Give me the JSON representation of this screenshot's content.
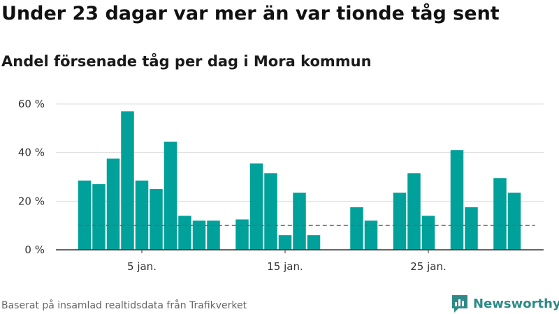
{
  "title": "Under 23 dagar var mer än var tionde tåg sent",
  "subtitle": "Andel försenade tåg per dag i Mora kommun",
  "source": "Baserat på insamlad realtidsdata från Trafikverket",
  "brand": {
    "name": "Newsworthy",
    "icon": "newsworthy-logo-icon"
  },
  "colors": {
    "bar": "#00A19A",
    "reference_line": "#666666",
    "grid": "#dddddd",
    "axis": "#333333",
    "brand": "#2e8a86"
  },
  "chart_data": {
    "type": "bar",
    "x": [
      1,
      2,
      3,
      4,
      5,
      6,
      7,
      8,
      9,
      10,
      11,
      12,
      13,
      14,
      15,
      16,
      17,
      18,
      19,
      20,
      21,
      22,
      23,
      24,
      25,
      26,
      27,
      28,
      29,
      30,
      31,
      32
    ],
    "values": [
      28.5,
      27,
      37.5,
      57,
      28.5,
      25,
      44.5,
      14,
      12,
      12,
      null,
      12.5,
      35.5,
      31.5,
      6,
      23.5,
      6,
      null,
      null,
      17.5,
      12,
      null,
      23.5,
      31.5,
      14,
      null,
      41,
      17.5,
      null,
      29.5,
      23.5,
      null
    ],
    "unit": "%",
    "ylim": [
      0,
      60
    ],
    "yticks": [
      0,
      20,
      40,
      60
    ],
    "ytick_labels": [
      "0 %",
      "20 %",
      "40 %",
      "60 %"
    ],
    "xticks": [
      5,
      15,
      25
    ],
    "xtick_labels": [
      "5 jan.",
      "15 jan.",
      "25 jan."
    ],
    "reference_line": {
      "value": 10,
      "style": "dashed"
    },
    "grid": "horizontal",
    "legend": "none"
  }
}
